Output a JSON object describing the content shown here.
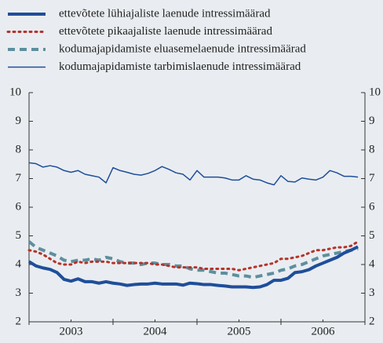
{
  "chart_data": {
    "type": "line",
    "legend_position": "top",
    "xlim": [
      2003,
      2007
    ],
    "xticks": [
      {
        "value": 2003.5,
        "label": "2003"
      },
      {
        "value": 2004.5,
        "label": "2004"
      },
      {
        "value": 2005.5,
        "label": "2005"
      },
      {
        "value": 2006.5,
        "label": "2006"
      }
    ],
    "xminor": [
      2003,
      2004,
      2005,
      2006,
      2007
    ],
    "ylim": [
      2,
      10
    ],
    "yticks": [
      2,
      3,
      4,
      5,
      6,
      7,
      8,
      9,
      10
    ],
    "y2lim": [
      2,
      10
    ],
    "y2ticks": [
      2,
      3,
      4,
      5,
      6,
      7,
      8,
      9,
      10
    ],
    "grid": false,
    "x": [
      2003.0,
      2003.0833,
      2003.1667,
      2003.25,
      2003.3333,
      2003.4167,
      2003.5,
      2003.5833,
      2003.6667,
      2003.75,
      2003.8333,
      2003.9167,
      2004.0,
      2004.0833,
      2004.1667,
      2004.25,
      2004.3333,
      2004.4167,
      2004.5,
      2004.5833,
      2004.6667,
      2004.75,
      2004.8333,
      2004.9167,
      2005.0,
      2005.0833,
      2005.1667,
      2005.25,
      2005.3333,
      2005.4167,
      2005.5,
      2005.5833,
      2005.6667,
      2005.75,
      2005.8333,
      2005.9167,
      2006.0,
      2006.0833,
      2006.1667,
      2006.25,
      2006.3333,
      2006.4167,
      2006.5,
      2006.5833,
      2006.6667,
      2006.75,
      2006.8333,
      2006.9167
    ],
    "series": [
      {
        "name": "ettevõtete lühiajaliste laenude intressimäärad",
        "color": "#1f4e9a",
        "dash": "solid",
        "line_width": 4,
        "values": [
          4.1,
          3.95,
          3.88,
          3.83,
          3.72,
          3.48,
          3.42,
          3.5,
          3.4,
          3.4,
          3.35,
          3.4,
          3.35,
          3.32,
          3.27,
          3.3,
          3.32,
          3.32,
          3.35,
          3.32,
          3.32,
          3.32,
          3.28,
          3.35,
          3.33,
          3.3,
          3.3,
          3.27,
          3.25,
          3.22,
          3.22,
          3.22,
          3.2,
          3.22,
          3.3,
          3.45,
          3.45,
          3.52,
          3.72,
          3.75,
          3.82,
          3.95,
          4.05,
          4.15,
          4.25,
          4.4,
          4.5,
          4.62
        ]
      },
      {
        "name": "ettevõtete pikaajaliste laenude intressimäärad",
        "color": "#b5332a",
        "dash": "dotted",
        "line_width": 3,
        "values": [
          4.5,
          4.45,
          4.35,
          4.2,
          4.05,
          4.0,
          4.0,
          4.1,
          4.05,
          4.1,
          4.1,
          4.1,
          4.05,
          4.05,
          4.05,
          4.05,
          4.05,
          4.05,
          4.0,
          4.0,
          3.95,
          3.9,
          3.9,
          3.9,
          3.9,
          3.85,
          3.85,
          3.85,
          3.85,
          3.85,
          3.8,
          3.85,
          3.9,
          3.95,
          4.0,
          4.05,
          4.2,
          4.2,
          4.25,
          4.3,
          4.4,
          4.5,
          4.5,
          4.55,
          4.6,
          4.6,
          4.65,
          4.8
        ]
      },
      {
        "name": "kodumajapidamiste eluasemelaenude intressimäärad",
        "color": "#5d8f9e",
        "dash": "dashed",
        "line_width": 4,
        "values": [
          4.8,
          4.6,
          4.5,
          4.4,
          4.3,
          4.15,
          4.1,
          4.15,
          4.15,
          4.2,
          4.15,
          4.25,
          4.2,
          4.1,
          4.05,
          4.05,
          4.0,
          4.05,
          4.05,
          4.0,
          4.0,
          3.95,
          3.95,
          3.85,
          3.8,
          3.8,
          3.75,
          3.7,
          3.7,
          3.65,
          3.6,
          3.6,
          3.55,
          3.6,
          3.65,
          3.7,
          3.8,
          3.85,
          3.95,
          4.0,
          4.1,
          4.2,
          4.3,
          4.35,
          4.4,
          4.45,
          4.5,
          4.55
        ]
      },
      {
        "name": "kodumajapidamiste tarbimislaenude intressimäärad",
        "color": "#1f4e9a",
        "dash": "solid",
        "line_width": 1.5,
        "values": [
          7.55,
          7.52,
          7.4,
          7.45,
          7.4,
          7.28,
          7.22,
          7.28,
          7.15,
          7.1,
          7.05,
          6.85,
          7.38,
          7.28,
          7.22,
          7.15,
          7.12,
          7.18,
          7.28,
          7.42,
          7.32,
          7.2,
          7.15,
          6.95,
          7.28,
          7.05,
          7.05,
          7.05,
          7.02,
          6.95,
          6.95,
          7.1,
          6.98,
          6.95,
          6.85,
          6.78,
          7.1,
          6.9,
          6.88,
          7.02,
          6.98,
          6.95,
          7.05,
          7.28,
          7.2,
          7.08,
          7.08,
          7.05
        ]
      }
    ]
  }
}
